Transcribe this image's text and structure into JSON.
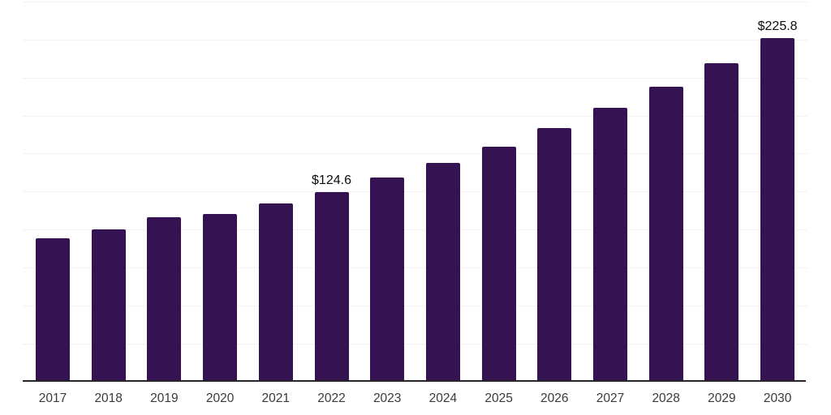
{
  "chart_data": {
    "type": "bar",
    "categories": [
      "2017",
      "2018",
      "2019",
      "2020",
      "2021",
      "2022",
      "2023",
      "2024",
      "2025",
      "2026",
      "2027",
      "2028",
      "2029",
      "2030"
    ],
    "values": [
      94.4,
      100.1,
      108.2,
      110.2,
      117.0,
      124.6,
      134.2,
      143.8,
      154.5,
      166.8,
      180.1,
      194.0,
      209.3,
      225.8
    ],
    "value_labels": [
      "",
      "",
      "",
      "",
      "",
      "$124.6",
      "",
      "",
      "",
      "",
      "",
      "",
      "",
      "$225.8"
    ],
    "ylim": [
      0,
      250
    ],
    "grid_step": 25,
    "grid": true,
    "legend": false,
    "y_axis_labels_shown": false,
    "colors": {
      "bar": "#351352",
      "gridline": "#f2f2f2",
      "axis_line": "#262626",
      "tick_label": "#3a3a3a",
      "data_label": "#0d0d0d",
      "background": "#ffffff"
    }
  }
}
